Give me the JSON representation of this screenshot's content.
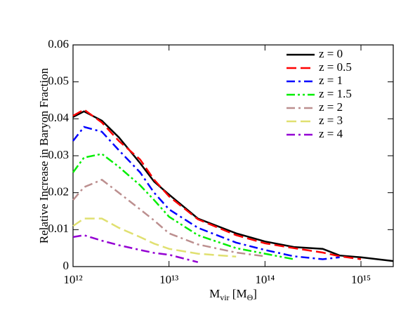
{
  "chart_data": {
    "type": "line",
    "x_scale": "log",
    "y_label": "Relative Increase in Baryon Fraction",
    "x_label_parts": [
      "M",
      "vir",
      " [M",
      "Θ",
      "]"
    ],
    "x": [
      1000000000000.0,
      1300000000000.0,
      2000000000000.0,
      3000000000000.0,
      5000000000000.0,
      7000000000000.0,
      10000000000000.0,
      20000000000000.0,
      50000000000000.0,
      100000000000000.0,
      200000000000000.0,
      400000000000000.0,
      600000000000000.0,
      1000000000000000.0,
      2170000000000000.0
    ],
    "xlim": [
      1000000000000.0,
      2170000000000000.0
    ],
    "xticks": [
      {
        "value": 1000000000000.0,
        "label": "10¹²"
      },
      {
        "value": 10000000000000.0,
        "label": "10¹³"
      },
      {
        "value": 100000000000000.0,
        "label": "10¹⁴"
      },
      {
        "value": 1000000000000000.0,
        "label": "10¹⁵"
      }
    ],
    "ylim": [
      0,
      0.06
    ],
    "yticks": [
      0,
      0.01,
      0.02,
      0.03,
      0.04,
      0.05,
      0.06
    ],
    "legend": "upper right",
    "series": [
      {
        "name": "z = 0",
        "color": "#000000",
        "dash": "solid",
        "values": [
          0.0405,
          0.042,
          0.0395,
          0.035,
          0.028,
          0.023,
          0.0195,
          0.013,
          0.009,
          0.0068,
          0.0053,
          0.0048,
          0.003,
          0.0025,
          0.0015
        ]
      },
      {
        "name": "z = 0.5",
        "color": "#ff0000",
        "dash": "dash",
        "values": [
          0.0408,
          0.0425,
          0.039,
          0.034,
          0.029,
          0.0235,
          0.019,
          0.0128,
          0.0085,
          0.0063,
          0.005,
          0.0038,
          0.0028,
          0.002,
          null
        ]
      },
      {
        "name": "z = 1",
        "color": "#0000ff",
        "dash": "dashdot",
        "values": [
          0.034,
          0.0378,
          0.0365,
          0.0315,
          0.0255,
          0.02,
          0.0155,
          0.0105,
          0.0065,
          0.0045,
          0.0028,
          0.002,
          0.0025,
          null,
          null
        ]
      },
      {
        "name": "z = 1.5",
        "color": "#00ee00",
        "dash": "dashdotdot",
        "values": [
          0.0255,
          0.0295,
          0.0305,
          0.027,
          0.022,
          0.018,
          0.0135,
          0.0085,
          0.005,
          0.0035,
          0.002,
          null,
          null,
          null,
          null
        ]
      },
      {
        "name": "z = 2",
        "color": "#bc8f8f",
        "dash": "dashdot",
        "values": [
          0.018,
          0.0215,
          0.0235,
          0.02,
          0.0155,
          0.0125,
          0.009,
          0.006,
          0.0038,
          0.0028,
          null,
          null,
          null,
          null,
          null
        ]
      },
      {
        "name": "z = 3",
        "color": "#e0e070",
        "dash": "dash",
        "values": [
          0.011,
          0.013,
          0.013,
          0.0105,
          0.008,
          0.0062,
          0.0048,
          0.0035,
          0.0027,
          null,
          null,
          null,
          null,
          null,
          null
        ]
      },
      {
        "name": "z = 4",
        "color": "#9400d3",
        "dash": "dashdot",
        "values": [
          0.008,
          0.0085,
          0.007,
          0.0058,
          0.0045,
          0.0037,
          0.0032,
          0.0012,
          null,
          null,
          null,
          null,
          null,
          null,
          null
        ]
      }
    ]
  }
}
